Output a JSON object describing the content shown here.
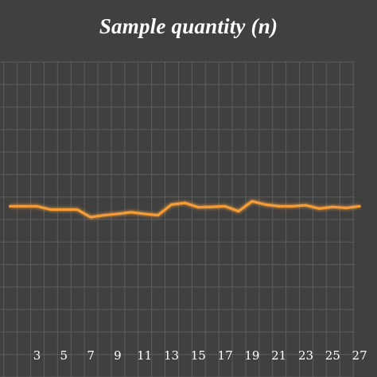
{
  "chart_data": {
    "type": "line",
    "title": "Sample quantity (n)",
    "xlabel": "",
    "ylabel": "",
    "x": [
      1,
      2,
      3,
      4,
      5,
      6,
      7,
      8,
      9,
      10,
      11,
      12,
      13,
      14,
      15,
      16,
      17,
      18,
      19,
      20,
      21,
      22,
      23,
      24,
      25,
      26,
      27
    ],
    "x_tick_labels": [
      "3",
      "5",
      "7",
      "9",
      "11",
      "13",
      "15",
      "17",
      "19",
      "21",
      "23",
      "25",
      "27"
    ],
    "series": [
      {
        "values": [
          5.15,
          5.15,
          5.15,
          5.05,
          5.05,
          5.05,
          4.82,
          4.88,
          4.92,
          4.97,
          4.92,
          4.88,
          5.2,
          5.25,
          5.12,
          5.13,
          5.15,
          5.0,
          5.3,
          5.2,
          5.15,
          5.15,
          5.18,
          5.08,
          5.13,
          5.1,
          5.15
        ]
      }
    ],
    "ylim": [
      0,
      9.5
    ],
    "grid": true,
    "colors": {
      "background": "#404040",
      "grid": "#5d5d5d",
      "line": "#f39c38",
      "text": "#ffffff"
    }
  }
}
